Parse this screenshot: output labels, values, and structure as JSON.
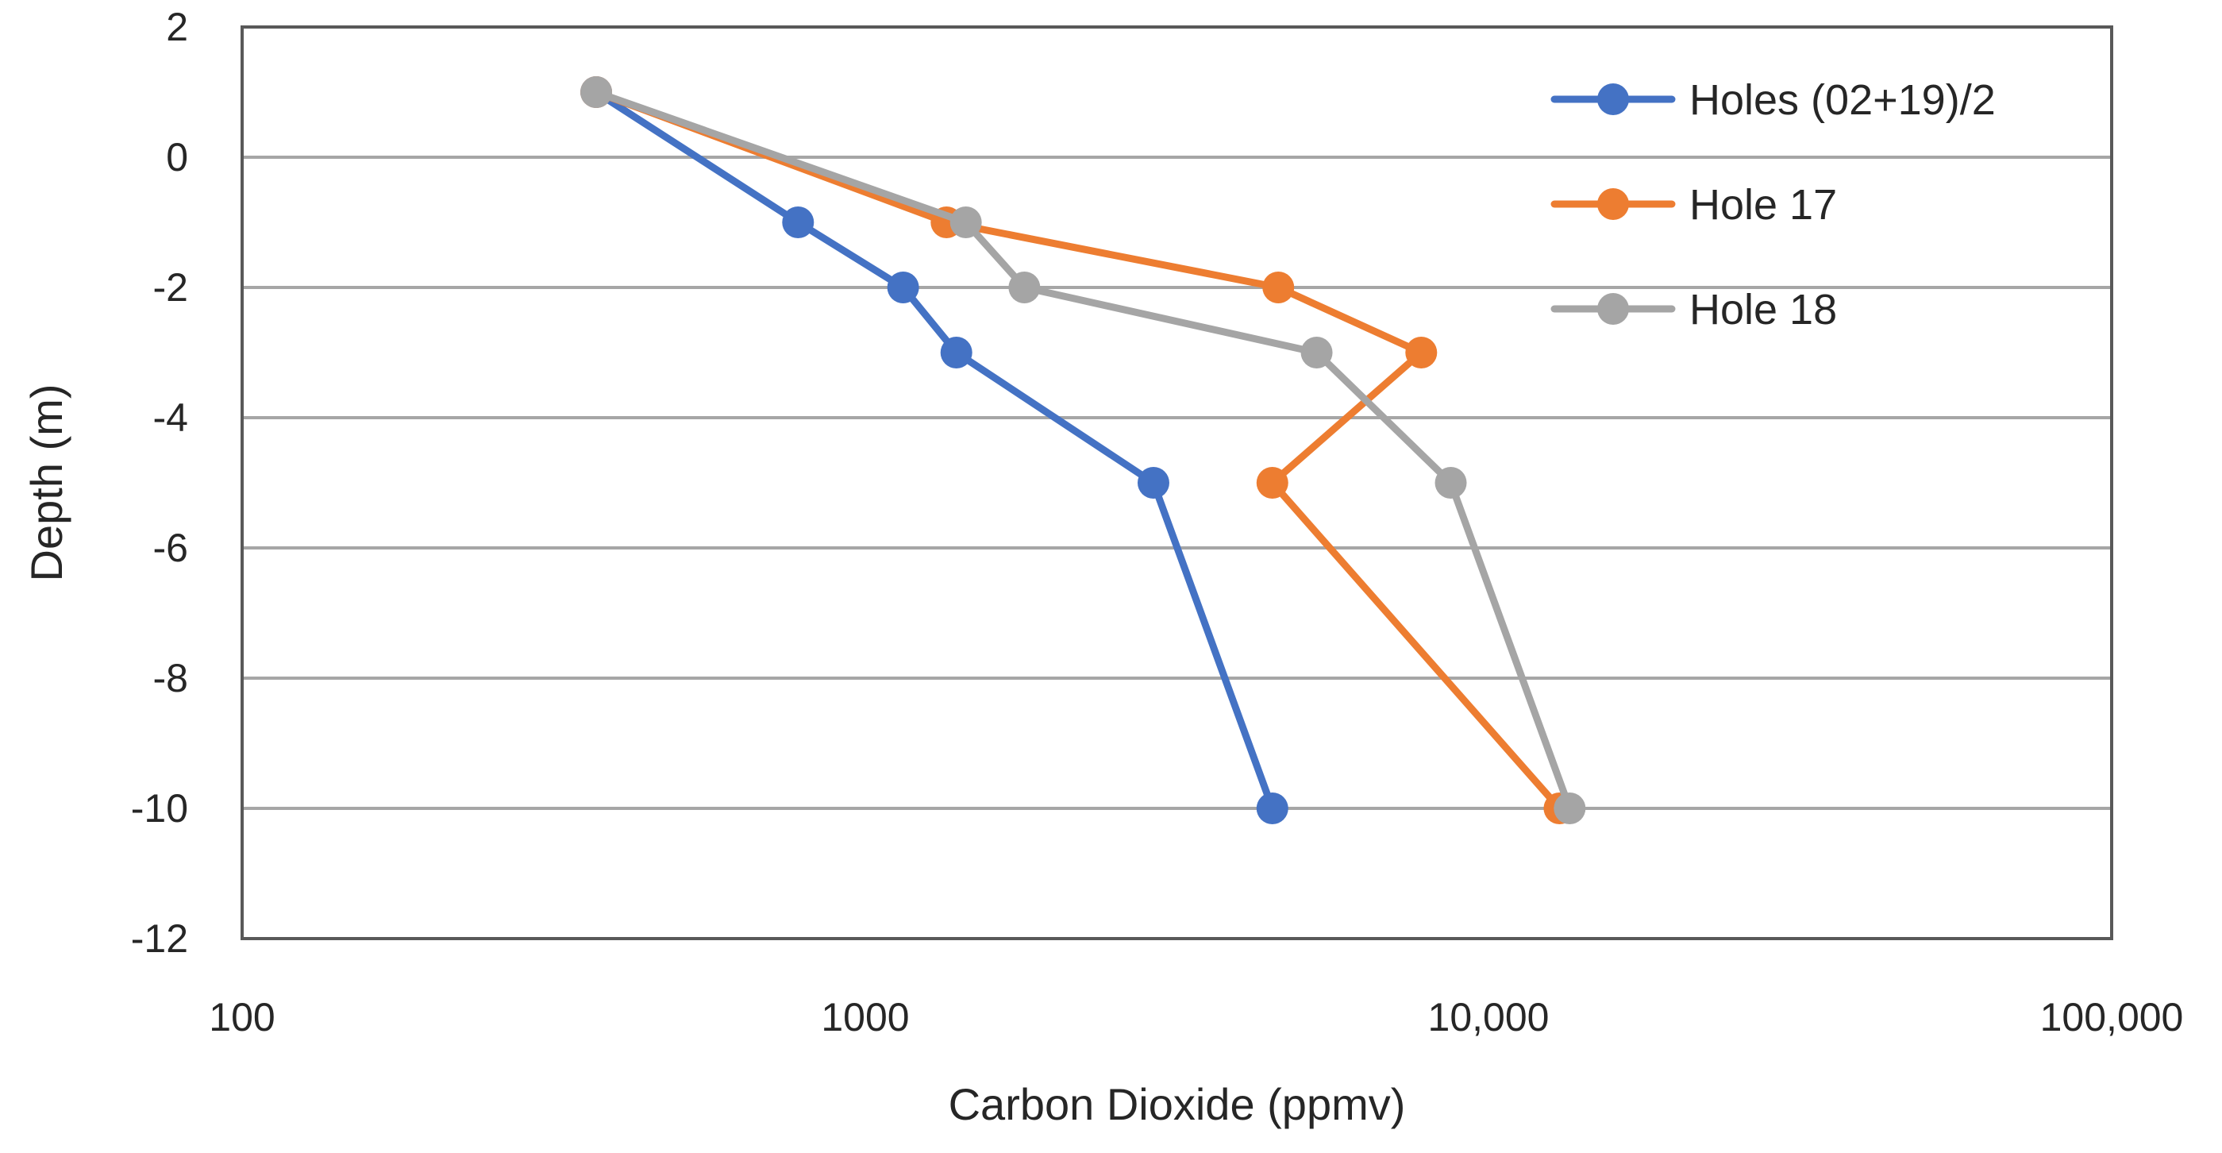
{
  "chart_data": {
    "type": "line",
    "title": "",
    "xlabel": "Carbon Dioxide (ppmv)",
    "ylabel": "Depth (m)",
    "x_scale": "log",
    "xlim": [
      100,
      100000
    ],
    "ylim": [
      -12,
      2
    ],
    "x_ticks": [
      {
        "value": 100,
        "label": "100"
      },
      {
        "value": 1000,
        "label": "1000"
      },
      {
        "value": 10000,
        "label": "10,000"
      },
      {
        "value": 100000,
        "label": "100,000"
      }
    ],
    "y_ticks": [
      {
        "value": 2,
        "label": "2"
      },
      {
        "value": 0,
        "label": "0"
      },
      {
        "value": -2,
        "label": "-2"
      },
      {
        "value": -4,
        "label": "-4"
      },
      {
        "value": -6,
        "label": "-6"
      },
      {
        "value": -8,
        "label": "-8"
      },
      {
        "value": -10,
        "label": "-10"
      },
      {
        "value": -12,
        "label": "-12"
      }
    ],
    "grid": "horizontal",
    "legend_position": "top-right",
    "series": [
      {
        "name": "Holes (02+19)/2",
        "color": "#4472C4",
        "points": [
          {
            "x": 370,
            "y": 1
          },
          {
            "x": 780,
            "y": -1
          },
          {
            "x": 1150,
            "y": -2
          },
          {
            "x": 1400,
            "y": -3
          },
          {
            "x": 2900,
            "y": -5
          },
          {
            "x": 4500,
            "y": -10
          }
        ]
      },
      {
        "name": "Hole 17",
        "color": "#ED7D31",
        "points": [
          {
            "x": 370,
            "y": 1
          },
          {
            "x": 1350,
            "y": -1
          },
          {
            "x": 4600,
            "y": -2
          },
          {
            "x": 7800,
            "y": -3
          },
          {
            "x": 4500,
            "y": -5
          },
          {
            "x": 13000,
            "y": -10
          }
        ]
      },
      {
        "name": "Hole 18",
        "color": "#A5A5A5",
        "points": [
          {
            "x": 370,
            "y": 1
          },
          {
            "x": 1450,
            "y": -1
          },
          {
            "x": 1800,
            "y": -2
          },
          {
            "x": 5300,
            "y": -3
          },
          {
            "x": 8700,
            "y": -5
          },
          {
            "x": 13500,
            "y": -10
          }
        ]
      }
    ]
  }
}
